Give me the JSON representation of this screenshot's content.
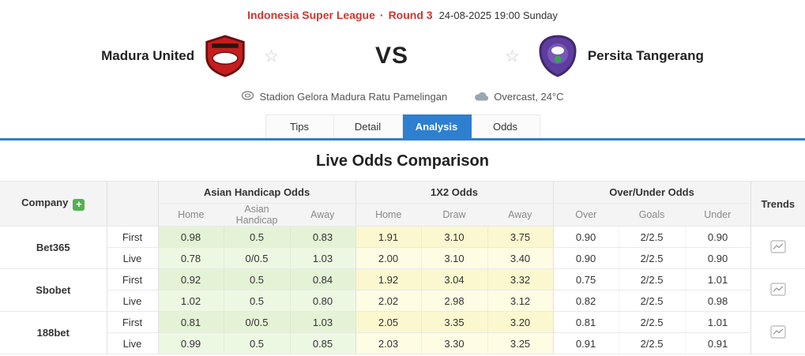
{
  "header": {
    "league": "Indonesia Super League",
    "separator": "·",
    "round": "Round 3",
    "datetime": "24-08-2025 19:00 Sunday"
  },
  "match": {
    "home_team": "Madura United",
    "away_team": "Persita Tangerang",
    "vs": "VS",
    "venue": "Stadion Gelora Madura Ratu Pamelingan",
    "weather": "Overcast, 24°C"
  },
  "icons": {
    "favorite_home": "star-outline-icon",
    "favorite_away": "star-outline-icon",
    "venue": "stadium-icon",
    "weather": "cloud-icon",
    "add_company": "plus-icon",
    "trend": "line-chart-icon"
  },
  "tabs": [
    {
      "label": "Tips",
      "active": false
    },
    {
      "label": "Detail",
      "active": false
    },
    {
      "label": "Analysis",
      "active": true
    },
    {
      "label": "Odds",
      "active": false
    }
  ],
  "section_title": "Live Odds Comparison",
  "table": {
    "company_header": "Company",
    "trends_header": "Trends",
    "group_headers": [
      "Asian Handicap Odds",
      "1X2 Odds",
      "Over/Under Odds"
    ],
    "sub_headers": [
      [
        "Home",
        "Asian Handicap",
        "Away"
      ],
      [
        "Home",
        "Draw",
        "Away"
      ],
      [
        "Over",
        "Goals",
        "Under"
      ]
    ],
    "companies": [
      {
        "name": "Bet365",
        "rows": [
          {
            "label": "First",
            "ah": [
              "0.98",
              "0.5",
              "0.83"
            ],
            "x12": [
              "1.91",
              "3.10",
              "3.75"
            ],
            "ou": [
              "0.90",
              "2/2.5",
              "0.90"
            ]
          },
          {
            "label": "Live",
            "ah": [
              "0.78",
              "0/0.5",
              "1.03"
            ],
            "x12": [
              "2.00",
              "3.10",
              "3.40"
            ],
            "ou": [
              "0.90",
              "2/2.5",
              "0.90"
            ]
          }
        ]
      },
      {
        "name": "Sbobet",
        "rows": [
          {
            "label": "First",
            "ah": [
              "0.92",
              "0.5",
              "0.84"
            ],
            "x12": [
              "1.92",
              "3.04",
              "3.32"
            ],
            "ou": [
              "0.75",
              "2/2.5",
              "1.01"
            ]
          },
          {
            "label": "Live",
            "ah": [
              "1.02",
              "0.5",
              "0.80"
            ],
            "x12": [
              "2.02",
              "2.98",
              "3.12"
            ],
            "ou": [
              "0.82",
              "2/2.5",
              "0.98"
            ]
          }
        ]
      },
      {
        "name": "188bet",
        "rows": [
          {
            "label": "First",
            "ah": [
              "0.81",
              "0/0.5",
              "1.03"
            ],
            "x12": [
              "2.05",
              "3.35",
              "3.20"
            ],
            "ou": [
              "0.81",
              "2/2.5",
              "1.01"
            ]
          },
          {
            "label": "Live",
            "ah": [
              "0.99",
              "0.5",
              "0.85"
            ],
            "x12": [
              "2.03",
              "3.30",
              "3.25"
            ],
            "ou": [
              "0.91",
              "2/2.5",
              "0.91"
            ]
          }
        ]
      }
    ]
  },
  "colors": {
    "accent_red": "#d2342e",
    "tab_active_blue": "#2e7fd0",
    "asian_handicap_bg": "#e4f3d6",
    "x12_bg": "#fbf8d0",
    "plus_green": "#52b152"
  }
}
